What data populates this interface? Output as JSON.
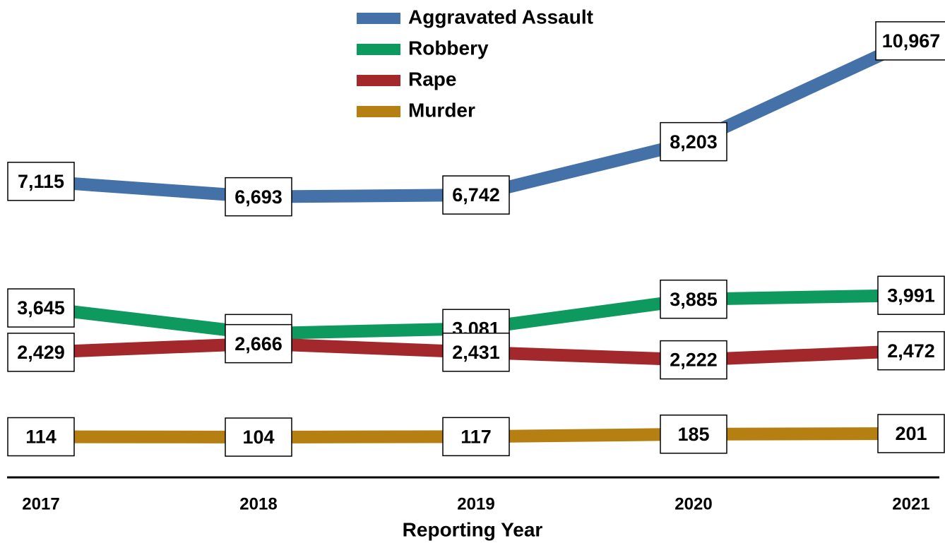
{
  "chart_data": {
    "type": "line",
    "x_label": "Reporting Year",
    "categories": [
      "2017",
      "2018",
      "2019",
      "2020",
      "2021"
    ],
    "ylim": [
      -1000,
      11700
    ],
    "legend": "top",
    "series": [
      {
        "name": "Aggravated Assault",
        "color": "#4571a9",
        "values": [
          7115,
          6693,
          6742,
          8203,
          10967
        ],
        "value_labels": [
          "7,115",
          "6,693",
          "6,742",
          "8,203",
          "10,967"
        ]
      },
      {
        "name": "Robbery",
        "color": "#0e9a5f",
        "values": [
          3645,
          2943,
          3081,
          3885,
          3991
        ],
        "value_labels": [
          "3,645",
          "2,943",
          "3,081",
          "3,885",
          "3,991"
        ]
      },
      {
        "name": "Rape",
        "color": "#a3282b",
        "values": [
          2429,
          2666,
          2431,
          2222,
          2472
        ],
        "value_labels": [
          "2,429",
          "2,666",
          "2,431",
          "2,222",
          "2,472"
        ]
      },
      {
        "name": "Murder",
        "color": "#b57f12",
        "values": [
          114,
          104,
          117,
          185,
          201
        ]
      }
    ]
  }
}
